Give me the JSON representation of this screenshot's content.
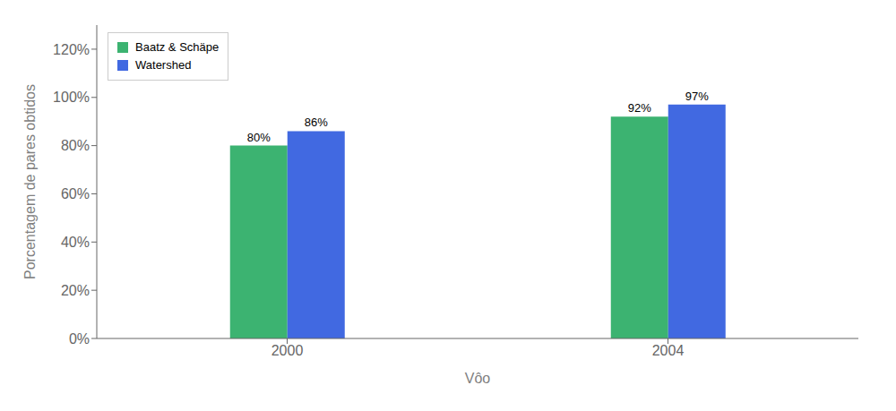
{
  "chart_data": {
    "type": "bar",
    "categories": [
      "2000",
      "2004"
    ],
    "series": [
      {
        "name": "Baatz & Schäpe",
        "color": "#3cb371",
        "values": [
          0.8,
          0.92
        ],
        "value_labels": [
          "80%",
          "92%"
        ]
      },
      {
        "name": "Watershed",
        "color": "#4169e1",
        "values": [
          0.86,
          0.97
        ],
        "value_labels": [
          "86%",
          "97%"
        ]
      }
    ],
    "xlabel": "Vôo",
    "ylabel": "Porcentagem de pares obtidos",
    "ylim": [
      0,
      1.3
    ],
    "yticks": [
      {
        "value": 0,
        "label": "0%"
      },
      {
        "value": 0.2,
        "label": "20%"
      },
      {
        "value": 0.4,
        "label": "40%"
      },
      {
        "value": 0.6,
        "label": "60%"
      },
      {
        "value": 0.8,
        "label": "80%"
      },
      {
        "value": 1.0,
        "label": "100%"
      },
      {
        "value": 1.2,
        "label": "120%"
      }
    ],
    "grid": false,
    "legend": "upper left",
    "data_labels": true
  }
}
